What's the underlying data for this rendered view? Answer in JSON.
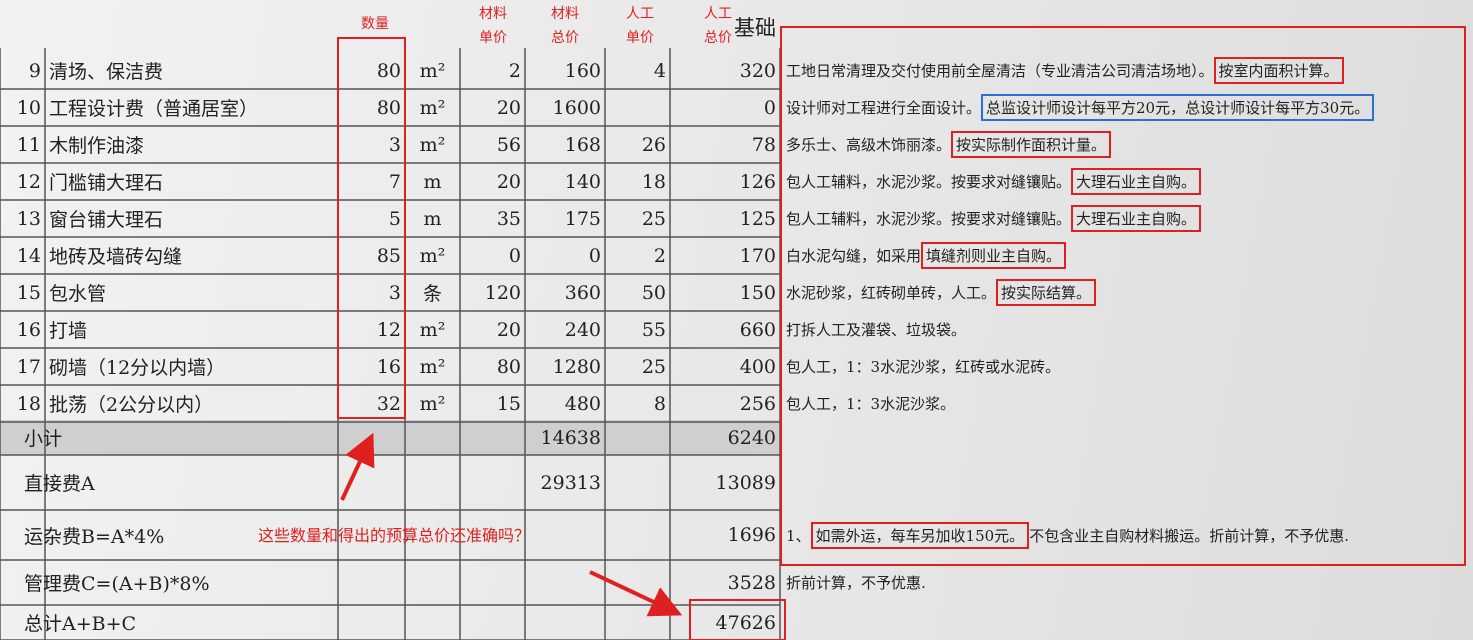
{
  "annotations": {
    "quantity": "数量",
    "material_unit_price": "材料单价",
    "material_total": "材料总价",
    "labor_unit_price": "人工单价",
    "labor_total": "人工总价",
    "question": "这些数量和得出的预算总价还准确吗？"
  },
  "header": {
    "basis": "基础"
  },
  "table": {
    "rows": [
      {
        "no": "9",
        "name": "清场、保洁费",
        "quantity": 80,
        "unit": "m²",
        "material_price": 2,
        "material_total": 160,
        "labor_price": 4,
        "labor_total": 320,
        "note": {
          "before": "工地日常清理及交付使用前全屋清洁（专业清洁公司清洁场地）。",
          "highlight": "按室内面积计算。"
        }
      },
      {
        "no": "10",
        "name": "工程设计费（普通居室）",
        "quantity": 80,
        "unit": "m²",
        "material_price": 20,
        "material_total": 1600,
        "labor_price": null,
        "labor_total": 0,
        "note": {
          "before": "设计师对工程进行全面设计。",
          "highlight": "总监设计师设计每平方20元，总设计师设计每平方30元。"
        }
      },
      {
        "no": "11",
        "name": "木制作油漆",
        "quantity": 3,
        "unit": "m²",
        "material_price": 56,
        "material_total": 168,
        "labor_price": 26,
        "labor_total": 78,
        "note": {
          "before": "多乐士、高级木饰丽漆。",
          "highlight": "按实际制作面积计量。"
        }
      },
      {
        "no": "12",
        "name": "门槛铺大理石",
        "quantity": 7,
        "unit": "m",
        "material_price": 20,
        "material_total": 140,
        "labor_price": 18,
        "labor_total": 126,
        "note": {
          "before": "包人工辅料，水泥沙浆。按要求对缝镶贴。",
          "highlight": "大理石业主自购。"
        }
      },
      {
        "no": "13",
        "name": "窗台铺大理石",
        "quantity": 5,
        "unit": "m",
        "material_price": 35,
        "material_total": 175,
        "labor_price": 25,
        "labor_total": 125,
        "note": {
          "before": "包人工辅料，水泥沙浆。按要求对缝镶贴。",
          "highlight": "大理石业主自购。"
        }
      },
      {
        "no": "14",
        "name": "地砖及墙砖勾缝",
        "quantity": 85,
        "unit": "m²",
        "material_price": 0,
        "material_total": 0,
        "labor_price": 2,
        "labor_total": 170,
        "note": {
          "before": "白水泥勾缝，如采用",
          "highlight": "填缝剂则业主自购。"
        }
      },
      {
        "no": "15",
        "name": "包水管",
        "quantity": 3,
        "unit": "条",
        "material_price": 120,
        "material_total": 360,
        "labor_price": 50,
        "labor_total": 150,
        "note": {
          "before": "水泥砂浆，红砖砌单砖，人工。",
          "highlight": "按实际结算。"
        }
      },
      {
        "no": "16",
        "name": "打墙",
        "quantity": 12,
        "unit": "m²",
        "material_price": 20,
        "material_total": 240,
        "labor_price": 55,
        "labor_total": 660,
        "note": {
          "before": "打拆人工及灌袋、垃圾袋。"
        }
      },
      {
        "no": "17",
        "name": "砌墙（12分以内墙）",
        "quantity": 16,
        "unit": "m²",
        "material_price": 80,
        "material_total": 1280,
        "labor_price": 25,
        "labor_total": 400,
        "note": {
          "before": "包人工，1：3水泥沙浆，红砖或水泥砖。"
        }
      },
      {
        "no": "18",
        "name": "批荡（2公分以内）",
        "quantity": 32,
        "unit": "m²",
        "material_price": 15,
        "material_total": 480,
        "labor_price": 8,
        "labor_total": 256,
        "note": {
          "before": "包人工，1：3水泥沙浆。"
        }
      }
    ],
    "summary": [
      {
        "label": "小计",
        "material_total": 14638,
        "labor_total": 6240
      },
      {
        "label": "直接费A",
        "material_total": 29313,
        "labor_total": 13089
      },
      {
        "label": "运杂费B=A*4%",
        "labor_total": 1696,
        "note": {
          "before": "1、",
          "highlight": "如需外运，每车另加收150元。",
          "after": "不包含业主自购材料搬运。折前计算，不予优惠."
        }
      },
      {
        "label": "管理费C=(A+B)*8%",
        "labor_total": 3528,
        "note": {
          "before": "折前计算，不予优惠."
        }
      },
      {
        "label": "总计A+B+C",
        "labor_total": 47626
      }
    ]
  }
}
